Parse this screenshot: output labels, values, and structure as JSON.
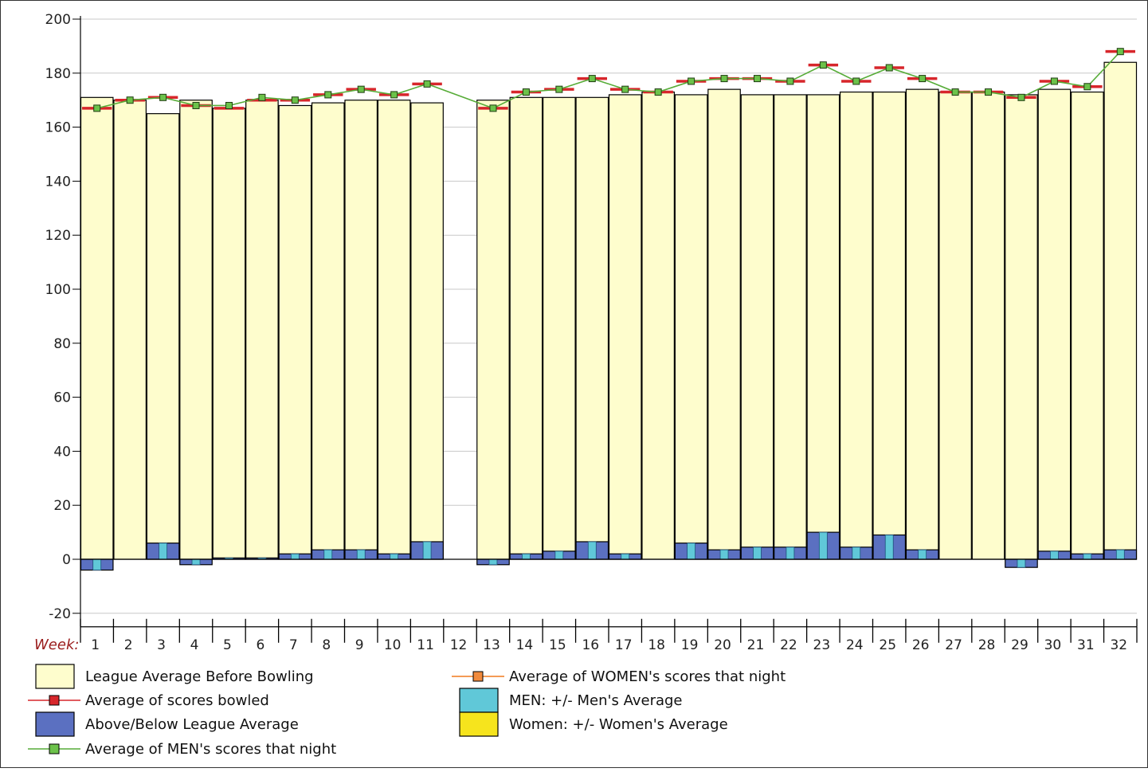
{
  "colors": {
    "league_avg_fill": "#fefdcd",
    "above_below_fill": "#5b70c1",
    "men_fill": "#60c8d8",
    "women_fill": "#f6e41d",
    "scores_line": "#d7262b",
    "men_line": "#57ac38",
    "men_marker": "#6cc24a",
    "women_line": "#f07a1e",
    "women_marker": "#f18a3c",
    "grid": "#c8c8c8",
    "week_label": "#9a1c1c"
  },
  "chart_data": {
    "type": "bar",
    "week_label": "Week:",
    "categories": [
      "1",
      "2",
      "3",
      "4",
      "5",
      "6",
      "7",
      "8",
      "9",
      "10",
      "11",
      "12",
      "13",
      "14",
      "15",
      "16",
      "17",
      "18",
      "19",
      "20",
      "21",
      "22",
      "23",
      "24",
      "25",
      "26",
      "27",
      "28",
      "29",
      "30",
      "31",
      "32"
    ],
    "ylim": [
      -25,
      200
    ],
    "yticks": [
      -20,
      0,
      20,
      40,
      60,
      80,
      100,
      120,
      140,
      160,
      180,
      200
    ],
    "grid": true,
    "legend_position": "bottom",
    "legend": [
      {
        "label": "League Average Before Bowling",
        "kind": "box",
        "color_key": "league_avg_fill"
      },
      {
        "label": "Average of scores bowled",
        "kind": "line-marker",
        "color_key": "scores_line"
      },
      {
        "label": "Above/Below League Average",
        "kind": "box",
        "color_key": "above_below_fill"
      },
      {
        "label": "Average of MEN's scores that night",
        "kind": "line-marker",
        "color_key": "men_line"
      },
      {
        "label": "Average of WOMEN's scores that night",
        "kind": "line-marker",
        "color_key": "women_line"
      },
      {
        "label": "MEN: +/- Men's Average",
        "kind": "box",
        "color_key": "men_fill"
      },
      {
        "label": "Women: +/- Women's Average",
        "kind": "box",
        "color_key": "women_fill"
      }
    ],
    "series": [
      {
        "name": "League Average Before Bowling",
        "values": [
          171,
          170,
          165,
          170,
          167,
          170,
          168,
          169,
          170,
          170,
          169,
          null,
          170,
          171,
          171,
          171,
          172,
          173,
          172,
          174,
          172,
          172,
          172,
          173,
          173,
          174,
          173,
          173,
          172,
          174,
          173,
          184
        ]
      },
      {
        "name": "Average of scores bowled",
        "values": [
          167,
          170,
          171,
          168,
          167,
          170,
          170,
          172,
          174,
          172,
          176,
          null,
          167,
          173,
          174,
          178,
          174,
          173,
          177,
          178,
          178,
          177,
          183,
          177,
          182,
          178,
          173,
          173,
          171,
          177,
          175,
          188
        ]
      },
      {
        "name": "Above/Below League Average",
        "values": [
          -4,
          0,
          6,
          -2,
          0.5,
          0.5,
          2,
          3.5,
          3.5,
          2,
          6.5,
          null,
          -2,
          2,
          3,
          6.5,
          2,
          0,
          6,
          3.5,
          4.5,
          4.5,
          10,
          4.5,
          9,
          3.5,
          0,
          0,
          -3,
          3,
          2,
          3.5
        ]
      },
      {
        "name": "Average of MEN's scores that night",
        "values": [
          167,
          170,
          171,
          168,
          168,
          171,
          170,
          172,
          174,
          172,
          176,
          null,
          167,
          173,
          174,
          178,
          174,
          173,
          177,
          178,
          178,
          177,
          183,
          177,
          182,
          178,
          173,
          173,
          171,
          177,
          175,
          188
        ]
      },
      {
        "name": "MEN: +/- Men's Average",
        "values": [
          -4,
          0,
          6,
          -2,
          0.5,
          0.5,
          2,
          3.5,
          3.5,
          2,
          6.5,
          null,
          -2,
          2,
          3,
          6.5,
          2,
          0,
          6,
          3.5,
          4.5,
          4.5,
          10,
          4.5,
          9,
          3.5,
          0,
          0,
          -3,
          3,
          2,
          3.5
        ]
      }
    ]
  }
}
